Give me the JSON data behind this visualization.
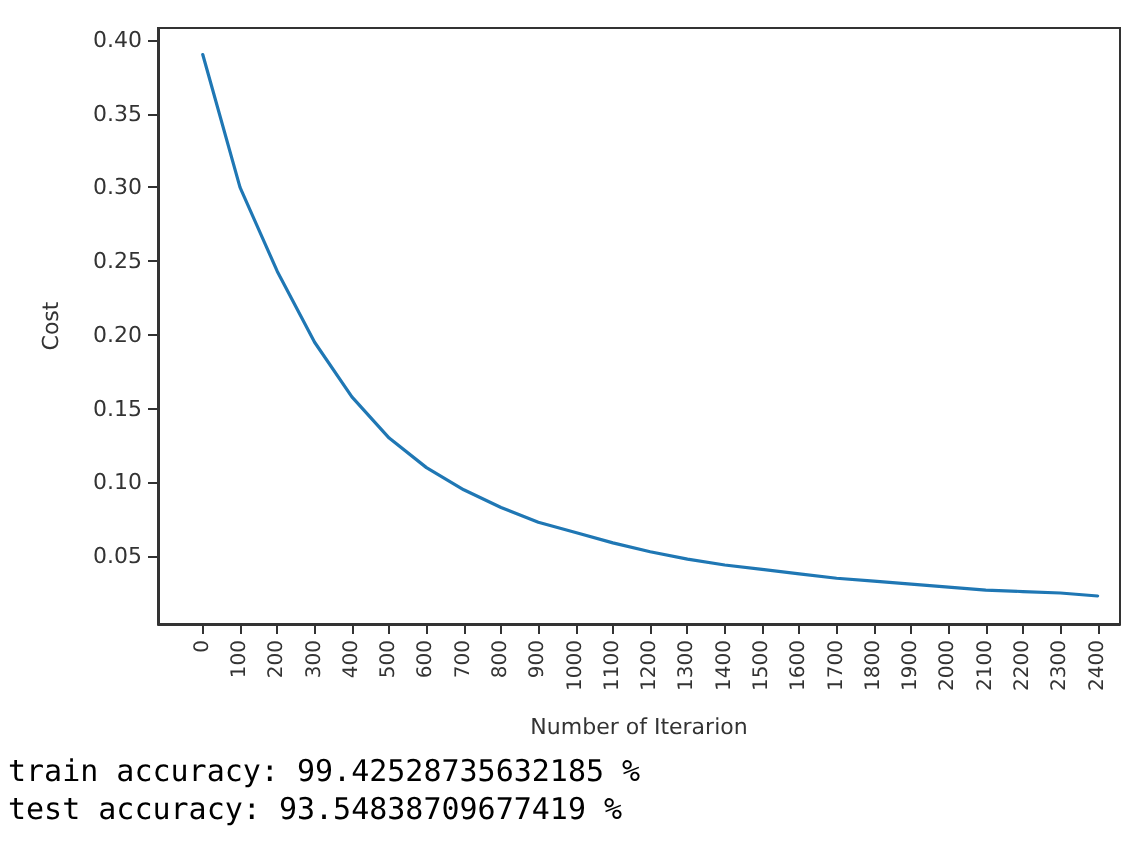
{
  "chart_data": {
    "type": "line",
    "xlabel": "Number of Iterarion",
    "ylabel": "Cost",
    "x": [
      0,
      100,
      200,
      300,
      400,
      500,
      600,
      700,
      800,
      900,
      1000,
      1100,
      1200,
      1300,
      1400,
      1500,
      1600,
      1700,
      1800,
      1900,
      2000,
      2100,
      2200,
      2300,
      2400
    ],
    "series": [
      {
        "color": "#1f77b4",
        "values": [
          0.39,
          0.3,
          0.243,
          0.195,
          0.158,
          0.13,
          0.11,
          0.095,
          0.083,
          0.073,
          0.066,
          0.059,
          0.053,
          0.048,
          0.044,
          0.041,
          0.038,
          0.035,
          0.033,
          0.031,
          0.029,
          0.027,
          0.026,
          0.025,
          0.023
        ]
      }
    ],
    "xlim": [
      -120,
      2460
    ],
    "xticks": [
      0,
      100,
      200,
      300,
      400,
      500,
      600,
      700,
      800,
      900,
      1000,
      1100,
      1200,
      1300,
      1400,
      1500,
      1600,
      1700,
      1800,
      1900,
      2000,
      2100,
      2200,
      2300,
      2400
    ],
    "ylim": [
      0.004,
      0.408
    ],
    "yticks": [
      {
        "value": 0.05,
        "label": "0.05"
      },
      {
        "value": 0.1,
        "label": "0.10"
      },
      {
        "value": 0.15,
        "label": "0.15"
      },
      {
        "value": 0.2,
        "label": "0.20"
      },
      {
        "value": 0.25,
        "label": "0.25"
      },
      {
        "value": 0.3,
        "label": "0.30"
      },
      {
        "value": 0.35,
        "label": "0.35"
      },
      {
        "value": 0.4,
        "label": "0.40"
      }
    ],
    "grid": false,
    "marker": "none",
    "line_style": "solid",
    "annotations": [
      "train accuracy: 99.42528735632185 %",
      "test accuracy: 93.54838709677419 %"
    ]
  }
}
